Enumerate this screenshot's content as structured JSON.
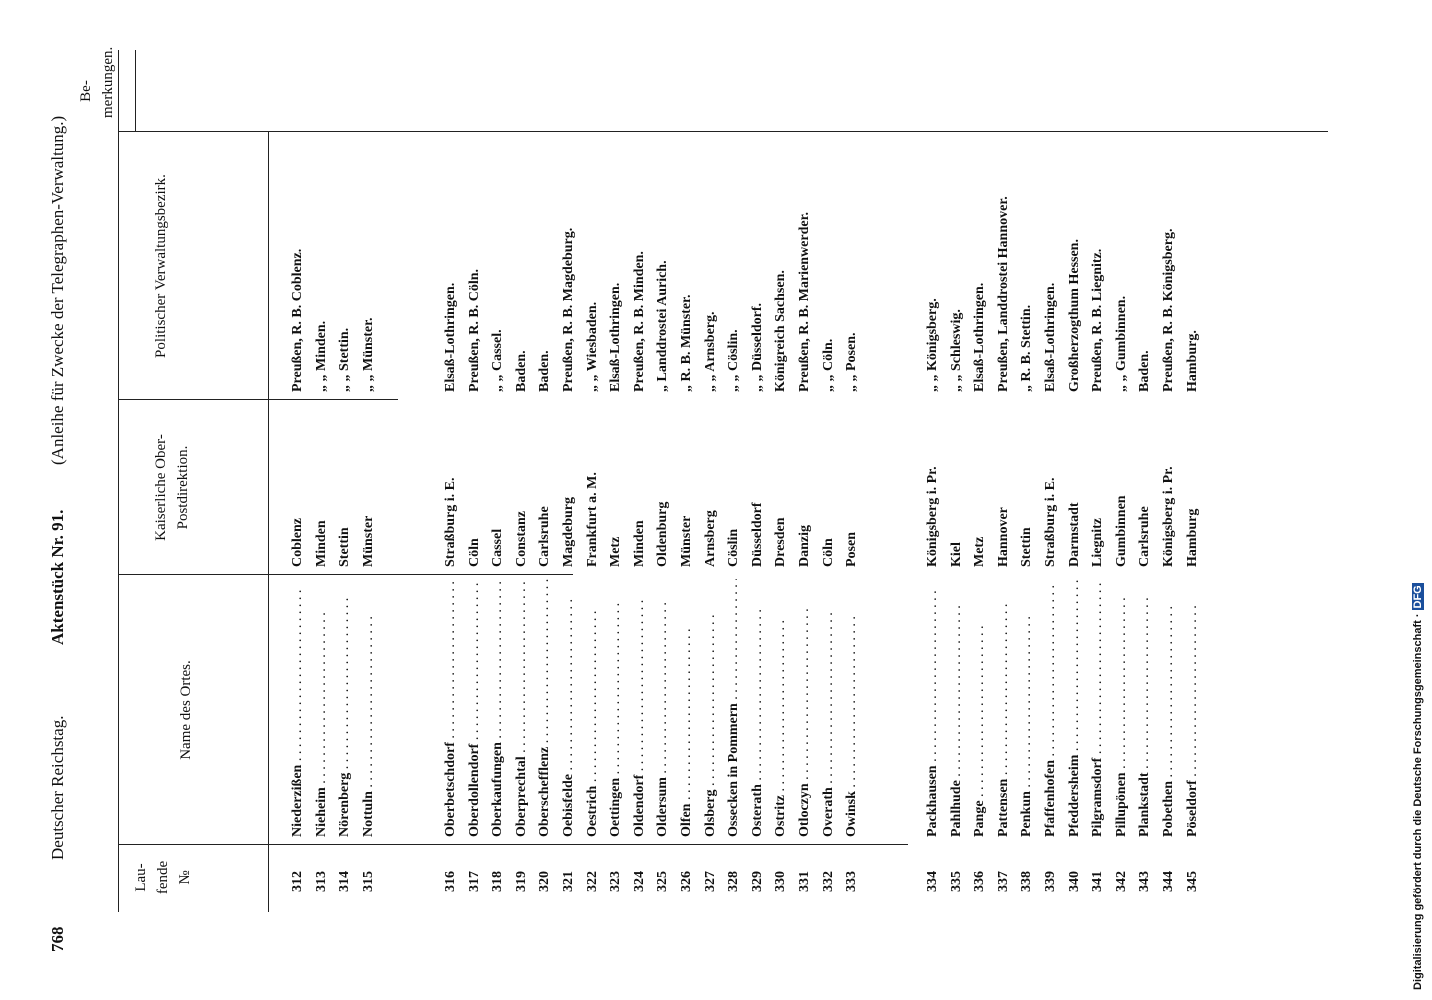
{
  "header": {
    "page_number": "768",
    "publication": "Deutscher Reichstag.",
    "document": "Aktenstück Nr. 91.",
    "subtitle": "(Anleihe für Zwecke der Telegraphen-Verwaltung.)"
  },
  "columns": [
    "Lau-fende №",
    "Name des Ortes.",
    "Kaiserliche Ober-Postdirektion.",
    "Politischer Verwaltungsbezirk.",
    "Be-merkungen."
  ],
  "table": {
    "groups": [
      [
        [
          "312",
          "Niederzißen",
          "Coblenz",
          "Preußen, R. B. Coblenz."
        ],
        [
          "313",
          "Nieheim",
          "Minden",
          "„ „ Minden."
        ],
        [
          "314",
          "Nörenberg",
          "Stettin",
          "„ „ Stettin."
        ],
        [
          "315",
          "Nottuln",
          "Münster",
          "„ „ Münster."
        ]
      ],
      [
        [
          "316",
          "Oberbetschdorf",
          "Straßburg i. E.",
          "Elsaß-Lothringen."
        ],
        [
          "317",
          "Oberdollendorf",
          "Cöln",
          "Preußen, R. B. Cöln."
        ],
        [
          "318",
          "Oberkaufungen",
          "Cassel",
          "„ „ Cassel."
        ],
        [
          "319",
          "Oberprechtal",
          "Constanz",
          "Baden."
        ],
        [
          "320",
          "Oberschefflenz",
          "Carlsruhe",
          "Baden."
        ],
        [
          "321",
          "Oebisfelde",
          "Magdeburg",
          "Preußen, R. B. Magdeburg."
        ],
        [
          "322",
          "Oestrich",
          "Frankfurt a. M.",
          "„ „ Wiesbaden."
        ],
        [
          "323",
          "Oettingen",
          "Metz",
          "Elsaß-Lothringen."
        ],
        [
          "324",
          "Oldendorf",
          "Minden",
          "Preußen, R. B. Minden."
        ],
        [
          "325",
          "Oldersum",
          "Oldenburg",
          "„ Landdrostei Aurich."
        ],
        [
          "326",
          "Olfen",
          "Münster",
          "„ R. B. Münster."
        ],
        [
          "327",
          "Olsberg",
          "Arnsberg",
          "„ „ Arnsberg."
        ],
        [
          "328",
          "Ossecken in Pommern",
          "Cöslin",
          "„ „ Cöslin."
        ],
        [
          "329",
          "Osterath",
          "Düsseldorf",
          "„ „ Düsseldorf."
        ],
        [
          "330",
          "Ostritz",
          "Dresden",
          "Königreich Sachsen."
        ],
        [
          "331",
          "Otloczyn",
          "Danzig",
          "Preußen, R. B. Marienwerder."
        ],
        [
          "332",
          "Overath",
          "Cöln",
          "„ „ Cöln."
        ],
        [
          "333",
          "Owinsk",
          "Posen",
          "„ „ Posen."
        ]
      ],
      [
        [
          "334",
          "Packhausen",
          "Königsberg i. Pr.",
          "„ „ Königsberg."
        ],
        [
          "335",
          "Pahlhude",
          "Kiel",
          "„ „ Schleswig."
        ],
        [
          "336",
          "Pange",
          "Metz",
          "Elsaß-Lothringen."
        ],
        [
          "337",
          "Pattensen",
          "Hannover",
          "Preußen, Landdrostei Hannover."
        ],
        [
          "338",
          "Penkun",
          "Stettin",
          "„ R. B. Stettin."
        ],
        [
          "339",
          "Pfaffenhofen",
          "Straßburg i. E.",
          "Elsaß-Lothringen."
        ],
        [
          "340",
          "Pfeddersheim",
          "Darmstadt",
          "Großherzogthum Hessen."
        ],
        [
          "341",
          "Pilgramsdorf",
          "Liegnitz",
          "Preußen, R. B. Liegnitz."
        ],
        [
          "342",
          "Pillupönen",
          "Gumbinnen",
          "„ „ Gumbinnen."
        ],
        [
          "343",
          "Plankstadt",
          "Carlsruhe",
          "Baden."
        ],
        [
          "344",
          "Pobethen",
          "Königsberg i. Pr.",
          "Preußen, R. B. Königsberg."
        ],
        [
          "345",
          "Pöseldorf",
          "Hamburg",
          "Hamburg."
        ]
      ]
    ]
  },
  "credit": {
    "text": "Digitalisierung gefördert durch die Deutsche Forschungsgemeinschaft ·",
    "logo": "DFG"
  }
}
